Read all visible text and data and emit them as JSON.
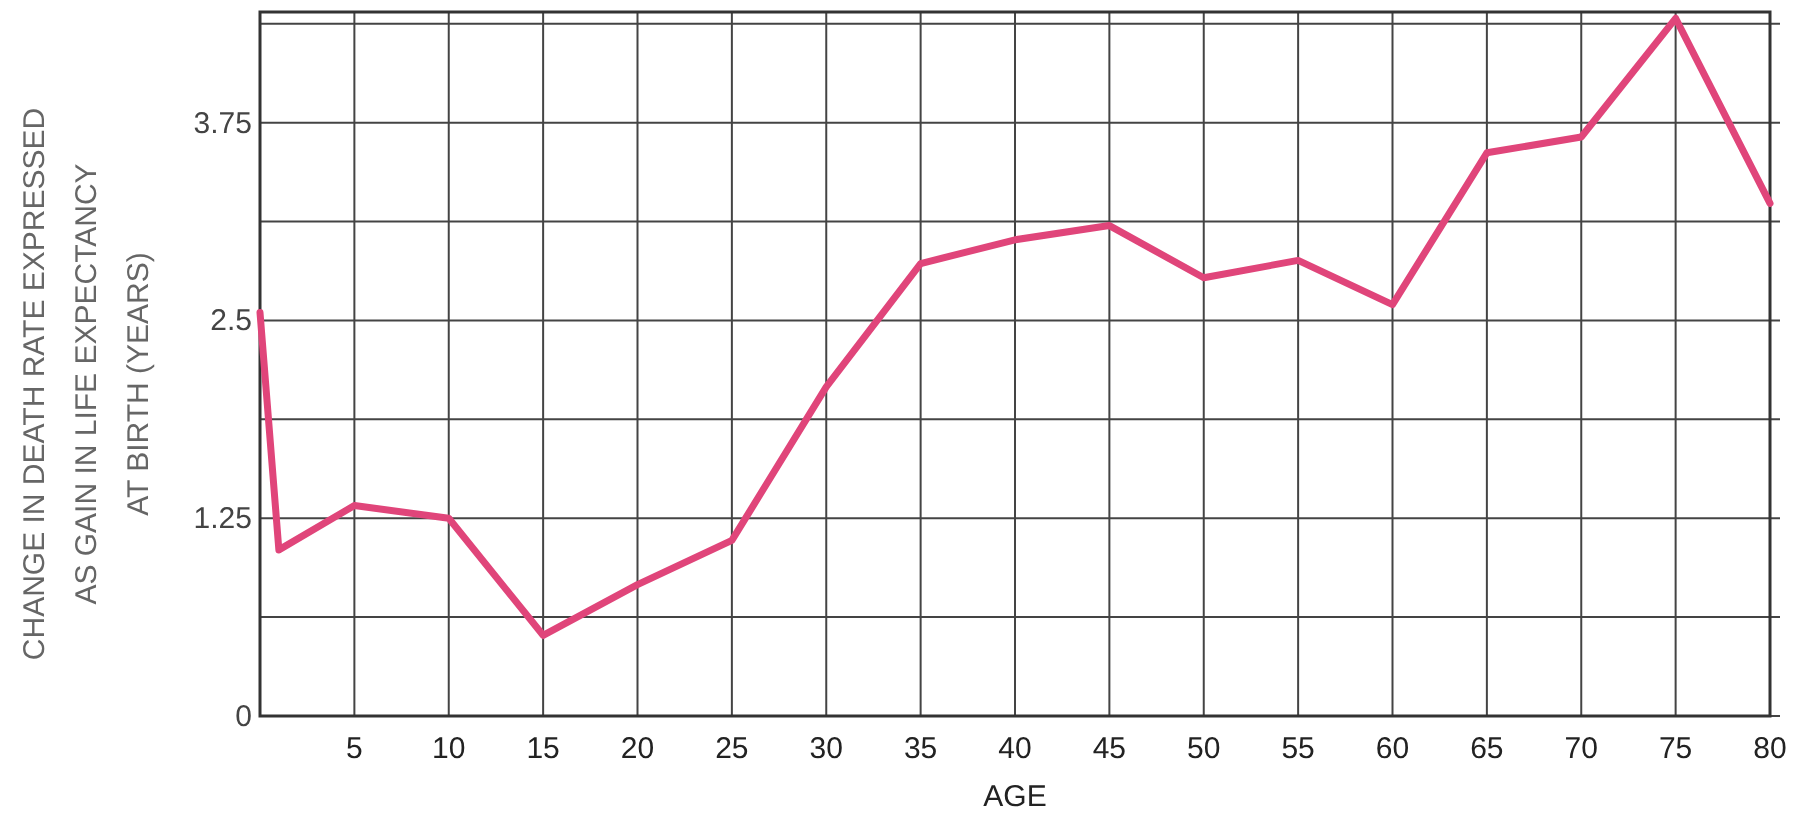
{
  "chart_data": {
    "type": "line",
    "xlabel": "AGE",
    "ylabel": "CHANGE IN DEATH RATE EXPRESSED\nAS GAIN IN LIFE EXPECTANCY\nAT BIRTH (YEARS)",
    "x": [
      0,
      1,
      5,
      10,
      15,
      20,
      25,
      30,
      35,
      40,
      45,
      50,
      55,
      60,
      65,
      70,
      75,
      80
    ],
    "series": [
      {
        "color": "#e0457a",
        "values": [
          2.55,
          1.05,
          1.33,
          1.25,
          0.51,
          0.83,
          1.11,
          2.08,
          2.86,
          3.01,
          3.1,
          2.77,
          2.88,
          2.6,
          3.56,
          3.66,
          4.41,
          3.24
        ]
      }
    ],
    "xlim": [
      0,
      80
    ],
    "xticks": [
      {
        "value": 0,
        "label": null
      },
      5,
      10,
      15,
      20,
      25,
      30,
      35,
      40,
      45,
      50,
      55,
      60,
      65,
      70,
      75,
      80
    ],
    "ylim": [
      0,
      4.45
    ],
    "yticks": [
      0,
      {
        "value": 0.625,
        "label": null
      },
      1.25,
      {
        "value": 1.875,
        "label": null
      },
      2.5,
      {
        "value": 3.125,
        "label": null
      },
      3.75,
      {
        "value": 4.375,
        "label": null
      }
    ],
    "grid": true,
    "marker": "none",
    "line_style": "solid"
  }
}
